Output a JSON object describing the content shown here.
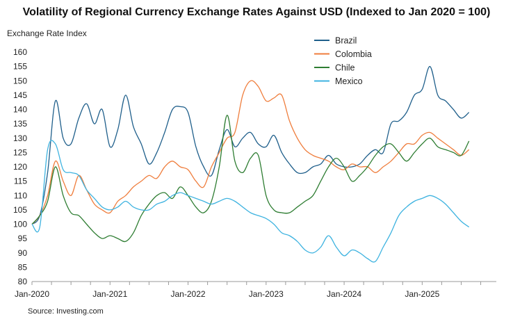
{
  "chart_data": {
    "type": "line",
    "title": "Volatility of Regional Currency Exchange Rates Against USD (Indexed to Jan 2020 = 100)",
    "ylabel": "Exchange Rate Index",
    "xlabel": "",
    "source": "Source: Investing.com",
    "ylim": [
      80,
      160
    ],
    "yticks": [
      80,
      85,
      90,
      95,
      100,
      105,
      110,
      115,
      120,
      125,
      130,
      135,
      140,
      145,
      150,
      155,
      160
    ],
    "xlim": [
      2020.0,
      2025.95
    ],
    "xticks": [
      {
        "value": 2020.0,
        "label": "Jan-2020"
      },
      {
        "value": 2021.0,
        "label": "Jan-2021"
      },
      {
        "value": 2022.0,
        "label": "Jan-2022"
      },
      {
        "value": 2023.0,
        "label": "Jan-2023"
      },
      {
        "value": 2024.0,
        "label": "Jan-2024"
      },
      {
        "value": 2025.0,
        "label": "Jan-2025"
      }
    ],
    "legend": "top-right",
    "series": [
      {
        "name": "Brazil",
        "color": "#1f5f8b",
        "x": [
          2020.0,
          2020.1,
          2020.2,
          2020.3,
          2020.4,
          2020.5,
          2020.6,
          2020.7,
          2020.8,
          2020.9,
          2021.0,
          2021.1,
          2021.2,
          2021.3,
          2021.4,
          2021.5,
          2021.6,
          2021.7,
          2021.8,
          2021.9,
          2022.0,
          2022.1,
          2022.2,
          2022.3,
          2022.4,
          2022.5,
          2022.6,
          2022.7,
          2022.8,
          2022.9,
          2023.0,
          2023.1,
          2023.2,
          2023.3,
          2023.4,
          2023.5,
          2023.6,
          2023.7,
          2023.8,
          2023.9,
          2024.0,
          2024.1,
          2024.2,
          2024.3,
          2024.4,
          2024.5,
          2024.6,
          2024.7,
          2024.8,
          2024.9,
          2025.0,
          2025.1,
          2025.2,
          2025.3,
          2025.4,
          2025.5,
          2025.6
        ],
        "y": [
          100,
          103,
          118,
          143,
          130,
          128,
          137,
          142,
          135,
          140,
          127,
          133,
          145,
          134,
          128,
          121,
          125,
          132,
          140,
          141,
          139,
          127,
          120,
          117,
          126,
          133,
          127,
          130,
          132,
          128,
          127,
          131,
          125,
          121,
          118,
          118,
          120,
          121,
          124,
          121,
          120,
          120,
          121,
          124,
          126,
          125,
          135,
          136,
          139,
          145,
          147,
          155,
          145,
          143,
          140,
          137,
          139
        ]
      },
      {
        "name": "Colombia",
        "color": "#ef7d3c",
        "x": [
          2020.0,
          2020.1,
          2020.2,
          2020.3,
          2020.4,
          2020.5,
          2020.6,
          2020.7,
          2020.8,
          2020.9,
          2021.0,
          2021.1,
          2021.2,
          2021.3,
          2021.4,
          2021.5,
          2021.6,
          2021.7,
          2021.8,
          2021.9,
          2022.0,
          2022.1,
          2022.2,
          2022.3,
          2022.4,
          2022.5,
          2022.6,
          2022.7,
          2022.8,
          2022.9,
          2023.0,
          2023.1,
          2023.2,
          2023.3,
          2023.4,
          2023.5,
          2023.6,
          2023.7,
          2023.8,
          2023.9,
          2024.0,
          2024.1,
          2024.2,
          2024.3,
          2024.4,
          2024.5,
          2024.6,
          2024.7,
          2024.8,
          2024.9,
          2025.0,
          2025.1,
          2025.2,
          2025.3,
          2025.4,
          2025.5,
          2025.6
        ],
        "y": [
          100,
          103,
          110,
          122,
          115,
          110,
          117,
          112,
          107,
          105,
          104,
          108,
          110,
          113,
          115,
          117,
          116,
          120,
          122,
          120,
          119,
          115,
          113,
          120,
          125,
          130,
          132,
          145,
          150,
          148,
          143,
          144,
          145,
          136,
          130,
          126,
          124,
          123,
          122,
          120,
          119,
          121,
          120,
          120,
          118,
          120,
          122,
          125,
          128,
          128,
          131,
          132,
          130,
          128,
          126,
          124,
          126
        ]
      },
      {
        "name": "Chile",
        "color": "#2e7d32",
        "x": [
          2020.0,
          2020.1,
          2020.2,
          2020.3,
          2020.4,
          2020.5,
          2020.6,
          2020.7,
          2020.8,
          2020.9,
          2021.0,
          2021.1,
          2021.2,
          2021.3,
          2021.4,
          2021.5,
          2021.6,
          2021.7,
          2021.8,
          2021.9,
          2022.0,
          2022.1,
          2022.2,
          2022.3,
          2022.4,
          2022.5,
          2022.6,
          2022.7,
          2022.8,
          2022.9,
          2023.0,
          2023.1,
          2023.2,
          2023.3,
          2023.4,
          2023.5,
          2023.6,
          2023.7,
          2023.8,
          2023.9,
          2024.0,
          2024.1,
          2024.2,
          2024.3,
          2024.4,
          2024.5,
          2024.6,
          2024.7,
          2024.8,
          2024.9,
          2025.0,
          2025.1,
          2025.2,
          2025.3,
          2025.4,
          2025.5,
          2025.6
        ],
        "y": [
          100,
          103,
          108,
          120,
          110,
          104,
          103,
          100,
          97,
          95,
          96,
          95,
          94,
          97,
          103,
          107,
          110,
          111,
          109,
          113,
          110,
          106,
          104,
          108,
          120,
          138,
          122,
          118,
          123,
          124,
          110,
          105,
          104,
          104,
          106,
          108,
          110,
          115,
          120,
          123,
          120,
          115,
          117,
          120,
          124,
          127,
          128,
          125,
          122,
          125,
          128,
          130,
          127,
          126,
          125,
          124,
          129
        ]
      },
      {
        "name": "Mexico",
        "color": "#3eb3e0",
        "x": [
          2020.0,
          2020.1,
          2020.2,
          2020.3,
          2020.4,
          2020.5,
          2020.6,
          2020.7,
          2020.8,
          2020.9,
          2021.0,
          2021.1,
          2021.2,
          2021.3,
          2021.4,
          2021.5,
          2021.6,
          2021.7,
          2021.8,
          2021.9,
          2022.0,
          2022.1,
          2022.2,
          2022.3,
          2022.4,
          2022.5,
          2022.6,
          2022.7,
          2022.8,
          2022.9,
          2023.0,
          2023.1,
          2023.2,
          2023.3,
          2023.4,
          2023.5,
          2023.6,
          2023.7,
          2023.8,
          2023.9,
          2024.0,
          2024.1,
          2024.2,
          2024.3,
          2024.4,
          2024.5,
          2024.6,
          2024.7,
          2024.8,
          2024.9,
          2025.0,
          2025.1,
          2025.2,
          2025.3,
          2025.4,
          2025.5,
          2025.6
        ],
        "y": [
          100,
          99,
          126,
          128,
          119,
          118,
          117,
          112,
          109,
          106,
          105,
          106,
          108,
          106,
          105,
          105,
          107,
          108,
          110,
          111,
          110,
          109,
          108,
          107,
          108,
          109,
          108,
          106,
          104,
          103,
          102,
          100,
          97,
          96,
          94,
          91,
          90,
          92,
          96,
          92,
          89,
          91,
          90,
          88,
          87,
          92,
          97,
          103,
          106,
          108,
          109,
          110,
          109,
          107,
          104,
          101,
          99
        ]
      }
    ]
  }
}
